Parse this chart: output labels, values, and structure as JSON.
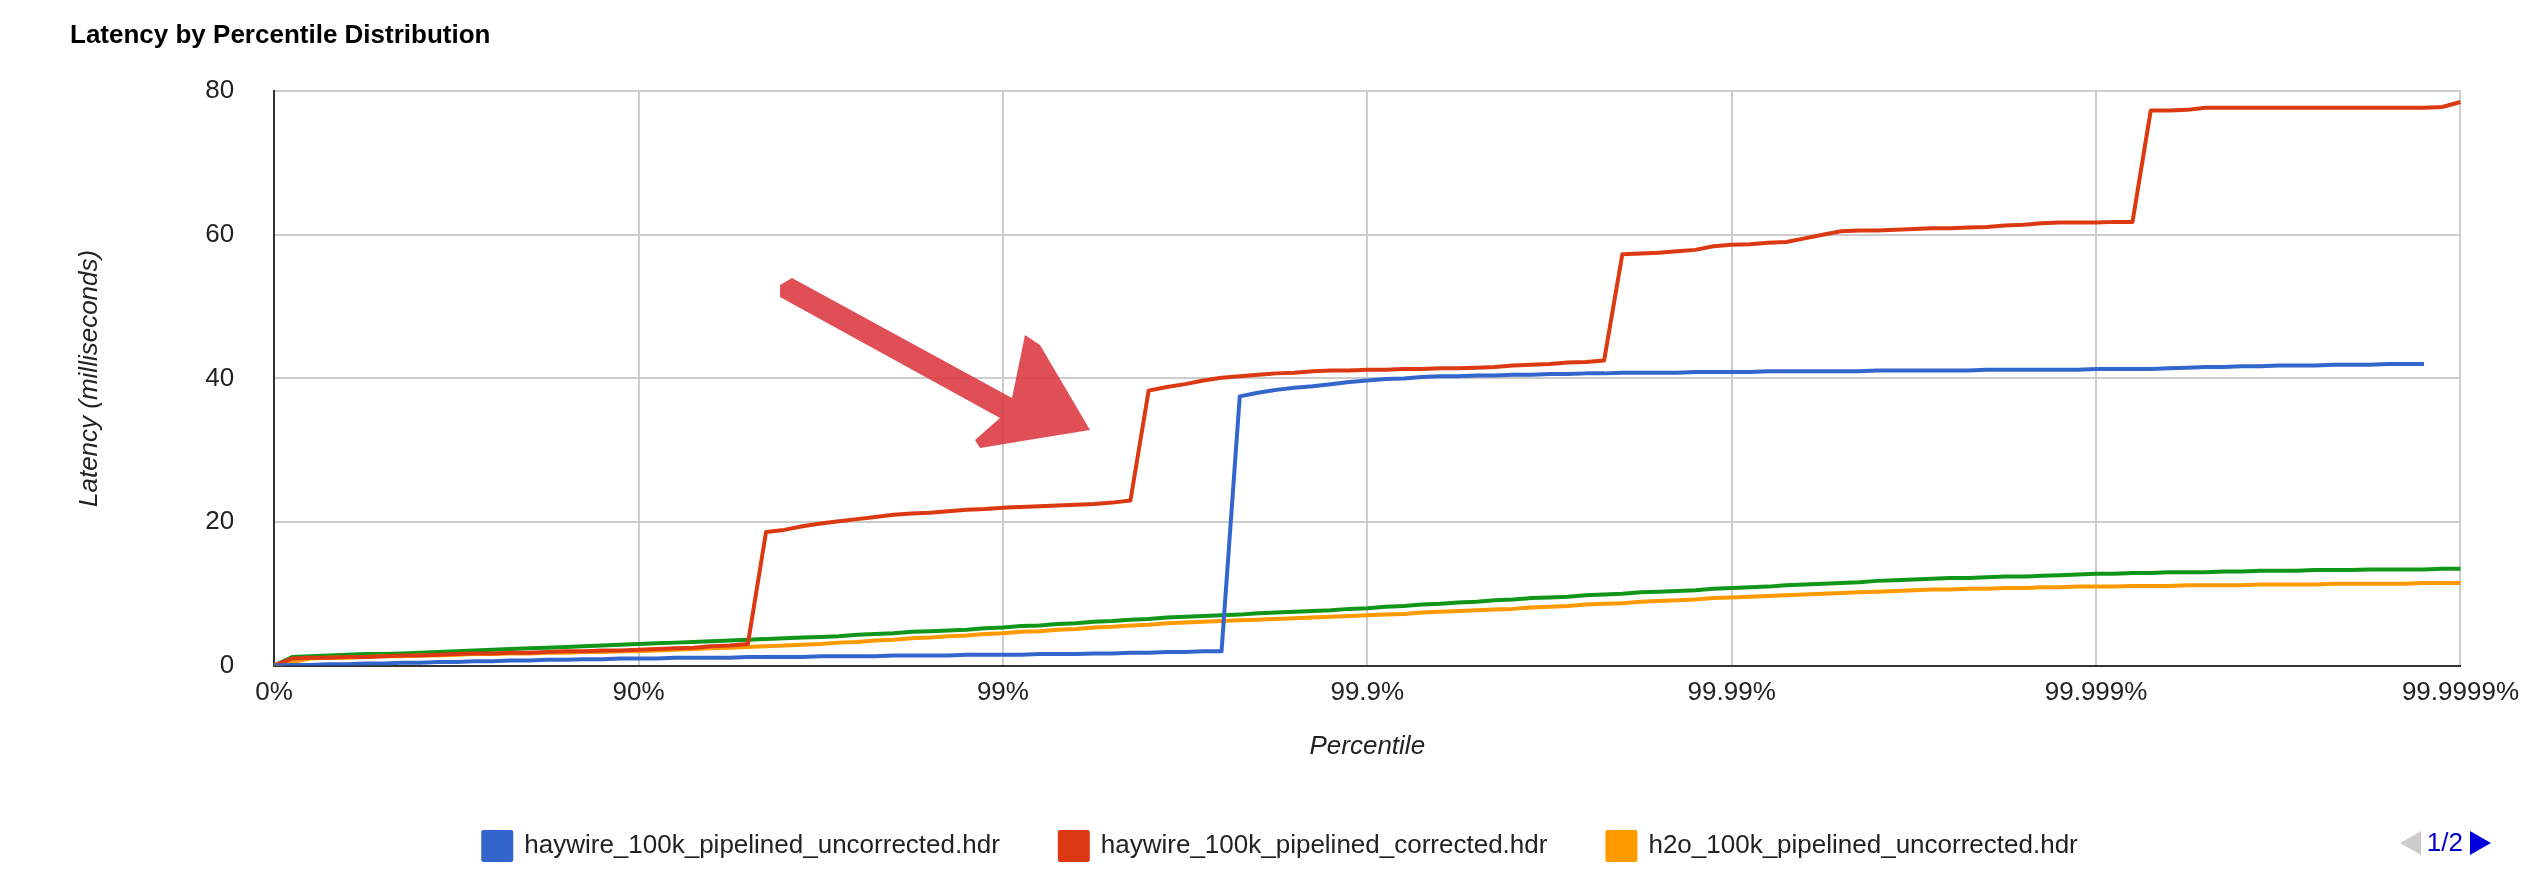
{
  "chart_data": {
    "type": "line",
    "title": "Latency by Percentile Distribution",
    "xlabel": "Percentile",
    "ylabel": "Latency (milliseconds)",
    "categories": [
      "0%",
      null,
      null,
      null,
      null,
      null,
      null,
      null,
      null,
      null,
      null,
      null,
      null,
      null,
      null,
      null,
      null,
      null,
      null,
      null,
      "90%",
      null,
      null,
      null,
      null,
      null,
      null,
      null,
      null,
      null,
      null,
      null,
      null,
      null,
      null,
      null,
      null,
      null,
      null,
      null,
      "99%",
      null,
      null,
      null,
      null,
      null,
      null,
      null,
      null,
      null,
      null,
      null,
      null,
      null,
      null,
      null,
      null,
      null,
      null,
      null,
      "99.9%",
      null,
      null,
      null,
      null,
      null,
      null,
      null,
      null,
      null,
      null,
      null,
      null,
      null,
      null,
      null,
      null,
      null,
      null,
      null,
      "99.99%",
      null,
      null,
      null,
      null,
      null,
      null,
      null,
      null,
      null,
      null,
      null,
      null,
      null,
      null,
      null,
      null,
      null,
      null,
      null,
      "99.999%",
      null,
      null,
      null,
      null,
      null,
      null,
      null,
      null,
      null,
      null,
      null,
      null,
      null,
      null,
      null,
      null,
      null,
      null,
      null,
      "99.9999%"
    ],
    "ylim": [
      0,
      80
    ],
    "yticks": [
      0,
      20,
      40,
      60,
      80
    ],
    "grid": true,
    "legend": "bottom",
    "marker": "none",
    "line_style": "solid",
    "annotations": [
      "1/2"
    ],
    "series": [
      {
        "name": "haywire_100k_pipelined_uncorrected.hdr",
        "color": "#3366cc",
        "values": [
          0,
          0.1,
          0.1,
          0.2,
          0.2,
          0.3,
          0.3,
          0.4,
          0.4,
          0.5,
          0.5,
          0.6,
          0.6,
          0.7,
          0.7,
          0.8,
          0.8,
          0.9,
          0.9,
          1,
          1,
          1.0,
          1.1,
          1.1,
          1.1,
          1.1,
          1.2,
          1.2,
          1.2,
          1.2,
          1.3,
          1.3,
          1.3,
          1.3,
          1.4,
          1.4,
          1.4,
          1.4,
          1.5,
          1.5,
          1.5,
          1.5,
          1.6,
          1.6,
          1.6,
          1.7,
          1.7,
          1.8,
          1.8,
          1.9,
          1.9,
          2.0,
          2,
          37.5,
          38,
          38.4,
          38.7,
          38.9,
          39.2,
          39.5,
          39.7,
          39.9,
          40,
          40.2,
          40.3,
          40.3,
          40.4,
          40.4,
          40.5,
          40.5,
          40.6,
          40.6,
          40.7,
          40.7,
          40.8,
          40.8,
          40.8,
          40.8,
          40.9,
          40.9,
          40.9,
          40.9,
          41,
          41,
          41,
          41,
          41,
          41,
          41.1,
          41.1,
          41.1,
          41.1,
          41.1,
          41.1,
          41.2,
          41.2,
          41.2,
          41.2,
          41.2,
          41.2,
          41.3,
          41.3,
          41.3,
          41.3,
          41.4,
          41.5,
          41.6,
          41.6,
          41.7,
          41.7,
          41.8,
          41.8,
          41.8,
          41.9,
          41.9,
          41.9,
          42,
          42,
          42,
          null,
          null
        ]
      },
      {
        "name": "haywire_100k_pipelined_corrected.hdr",
        "color": "#dc3912",
        "values": [
          0,
          1,
          1.1,
          1.1,
          1.2,
          1.2,
          1.3,
          1.4,
          1.4,
          1.5,
          1.6,
          1.7,
          1.7,
          1.8,
          1.8,
          1.9,
          2,
          2,
          2.1,
          2.1,
          2.2,
          2.3,
          2.4,
          2.5,
          2.7,
          2.8,
          3,
          18.6,
          18.9,
          19.4,
          19.8,
          20.1,
          20.4,
          20.7,
          21,
          21.2,
          21.3,
          21.5,
          21.7,
          21.8,
          22,
          22.1,
          22.2,
          22.3,
          22.4,
          22.5,
          22.7,
          23,
          38.3,
          38.8,
          39.2,
          39.7,
          40.1,
          40.3,
          40.5,
          40.7,
          40.8,
          41,
          41.1,
          41.1,
          41.2,
          41.2,
          41.3,
          41.3,
          41.4,
          41.4,
          41.5,
          41.6,
          41.8,
          41.9,
          42,
          42.2,
          42.3,
          42.5,
          57.3,
          57.4,
          57.5,
          57.7,
          57.9,
          58.4,
          58.6,
          58.7,
          58.9,
          59,
          59.5,
          60,
          60.5,
          60.6,
          60.6,
          60.7,
          60.8,
          60.9,
          60.9,
          61,
          61.1,
          61.3,
          61.4,
          61.6,
          61.7,
          61.7,
          61.7,
          61.8,
          61.8,
          77.3,
          77.3,
          77.4,
          77.7,
          77.7,
          77.7,
          77.7,
          77.7,
          77.7,
          77.7,
          77.7,
          77.7,
          77.7,
          77.7,
          77.7,
          77.7,
          77.8,
          78.5
        ]
      },
      {
        "name": "h2o_100k_pipelined_uncorrected.hdr",
        "color": "#ff9900",
        "values": [
          0,
          0.5,
          1,
          1.1,
          1.1,
          1.2,
          1.3,
          1.3,
          1.4,
          1.4,
          1.5,
          1.6,
          1.6,
          1.7,
          1.7,
          1.8,
          1.8,
          1.9,
          1.9,
          2,
          2,
          2.1,
          2.2,
          2.3,
          2.4,
          2.5,
          2.6,
          2.7,
          2.8,
          2.9,
          3,
          3.2,
          3.3,
          3.5,
          3.6,
          3.8,
          3.9,
          4.1,
          4.2,
          4.4,
          4.5,
          4.7,
          4.8,
          5,
          5.1,
          5.3,
          5.4,
          5.6,
          5.7,
          5.9,
          6,
          6.1,
          6.2,
          6.3,
          6.4,
          6.5,
          6.6,
          6.7,
          6.8,
          6.9,
          7,
          7.1,
          7.2,
          7.4,
          7.5,
          7.6,
          7.7,
          7.8,
          7.9,
          8.1,
          8.2,
          8.3,
          8.5,
          8.6,
          8.7,
          8.9,
          9,
          9.1,
          9.2,
          9.4,
          9.5,
          9.6,
          9.7,
          9.8,
          9.9,
          10,
          10.1,
          10.2,
          10.3,
          10.4,
          10.5,
          10.6,
          10.6,
          10.7,
          10.7,
          10.8,
          10.8,
          10.9,
          10.9,
          11,
          11,
          11,
          11.1,
          11.1,
          11.1,
          11.2,
          11.2,
          11.2,
          11.2,
          11.3,
          11.3,
          11.3,
          11.3,
          11.4,
          11.4,
          11.4,
          11.4,
          11.4,
          11.5,
          11.5,
          11.5
        ]
      },
      {
        "color": "#109618",
        "values": [
          0,
          1.2,
          1.3,
          1.4,
          1.5,
          1.6,
          1.6,
          1.7,
          1.8,
          1.9,
          2,
          2.1,
          2.2,
          2.3,
          2.4,
          2.5,
          2.6,
          2.7,
          2.8,
          2.9,
          3,
          3.1,
          3.2,
          3.3,
          3.4,
          3.5,
          3.6,
          3.7,
          3.8,
          3.9,
          4,
          4.1,
          4.3,
          4.4,
          4.5,
          4.7,
          4.8,
          4.9,
          5,
          5.2,
          5.3,
          5.5,
          5.6,
          5.8,
          5.9,
          6.1,
          6.2,
          6.4,
          6.5,
          6.7,
          6.8,
          6.9,
          7,
          7.1,
          7.3,
          7.4,
          7.5,
          7.6,
          7.7,
          7.9,
          8,
          8.2,
          8.3,
          8.5,
          8.6,
          8.8,
          8.9,
          9.1,
          9.2,
          9.4,
          9.5,
          9.6,
          9.8,
          9.9,
          10,
          10.2,
          10.3,
          10.4,
          10.5,
          10.7,
          10.8,
          10.9,
          11,
          11.2,
          11.3,
          11.4,
          11.5,
          11.6,
          11.8,
          11.9,
          12,
          12.1,
          12.2,
          12.2,
          12.3,
          12.4,
          12.4,
          12.5,
          12.6,
          12.7,
          12.8,
          12.8,
          12.9,
          12.9,
          13,
          13,
          13,
          13.1,
          13.1,
          13.2,
          13.2,
          13.2,
          13.3,
          13.3,
          13.3,
          13.4,
          13.4,
          13.4,
          13.4,
          13.5,
          13.5
        ]
      }
    ]
  }
}
